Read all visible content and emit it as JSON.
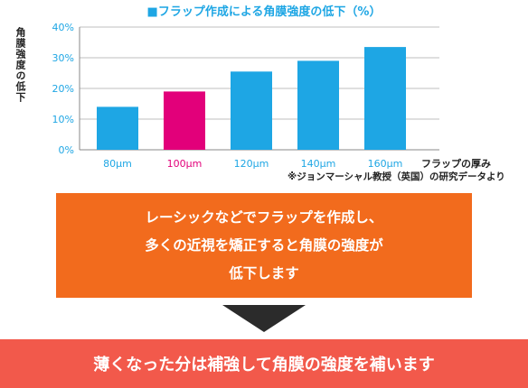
{
  "chart_data": {
    "type": "bar",
    "title": "■フラップ作成による角膜強度の低下（%）",
    "ylabel": "角膜強度の低下",
    "xlabel": "フラップの厚み",
    "categories": [
      "80μm",
      "100μm",
      "120μm",
      "140μm",
      "160μm"
    ],
    "values": [
      14,
      19,
      25.5,
      29,
      33.5
    ],
    "ylim": [
      0,
      40
    ],
    "yticks": [
      "0%",
      "10%",
      "20%",
      "30%",
      "40%"
    ],
    "grid": true,
    "colors": {
      "bar": "#1ea6e4",
      "highlight": "#e2007a",
      "highlight_index": 1,
      "tick_label": "#1ea6e4",
      "highlight_label": "#e2007a",
      "grid": "#bfbfbf"
    }
  },
  "source_note": "※ジョンマーシャル教授（英国）の研究データより",
  "message_box": {
    "lines": [
      "レーシックなどでフラップを作成し、",
      "多くの近視を矯正すると角膜の強度が",
      "低下します"
    ],
    "color": "#f26b1d"
  },
  "bottom_banner": {
    "text": "薄くなった分は補強して角膜の強度を補います",
    "color": "#f2594b"
  }
}
